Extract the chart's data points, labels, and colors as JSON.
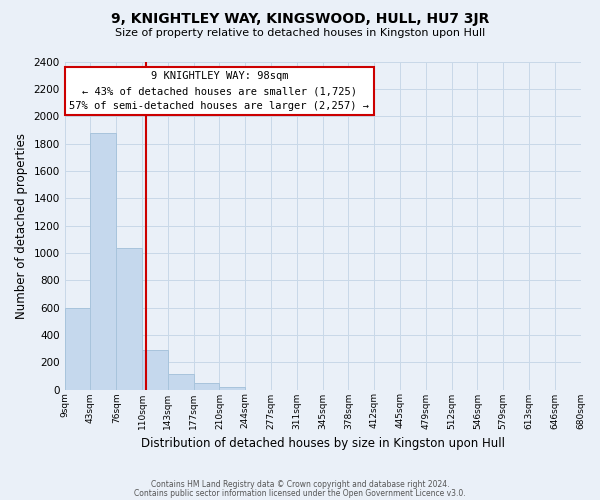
{
  "title": "9, KNIGHTLEY WAY, KINGSWOOD, HULL, HU7 3JR",
  "subtitle": "Size of property relative to detached houses in Kingston upon Hull",
  "xlabel": "Distribution of detached houses by size in Kingston upon Hull",
  "ylabel": "Number of detached properties",
  "bar_color": "#c5d8ed",
  "bar_edge_color": "#a8c4dc",
  "grid_color": "#c8d8e8",
  "background_color": "#eaf0f8",
  "bin_labels": [
    "9sqm",
    "43sqm",
    "76sqm",
    "110sqm",
    "143sqm",
    "177sqm",
    "210sqm",
    "244sqm",
    "277sqm",
    "311sqm",
    "345sqm",
    "378sqm",
    "412sqm",
    "445sqm",
    "479sqm",
    "512sqm",
    "546sqm",
    "579sqm",
    "613sqm",
    "646sqm",
    "680sqm"
  ],
  "bar_heights": [
    600,
    1880,
    1035,
    290,
    110,
    45,
    20,
    0,
    0,
    0,
    0,
    0,
    0,
    0,
    0,
    0,
    0,
    0,
    0,
    0
  ],
  "property_label": "9 KNIGHTLEY WAY: 98sqm",
  "annotation_line1": "← 43% of detached houses are smaller (1,725)",
  "annotation_line2": "57% of semi-detached houses are larger (2,257) →",
  "vline_bar_index": 2,
  "vline_color": "#cc0000",
  "annotation_box_color": "#ffffff",
  "annotation_box_edge": "#cc0000",
  "ylim": [
    0,
    2400
  ],
  "yticks": [
    0,
    200,
    400,
    600,
    800,
    1000,
    1200,
    1400,
    1600,
    1800,
    2000,
    2200,
    2400
  ],
  "footer1": "Contains HM Land Registry data © Crown copyright and database right 2024.",
  "footer2": "Contains public sector information licensed under the Open Government Licence v3.0."
}
